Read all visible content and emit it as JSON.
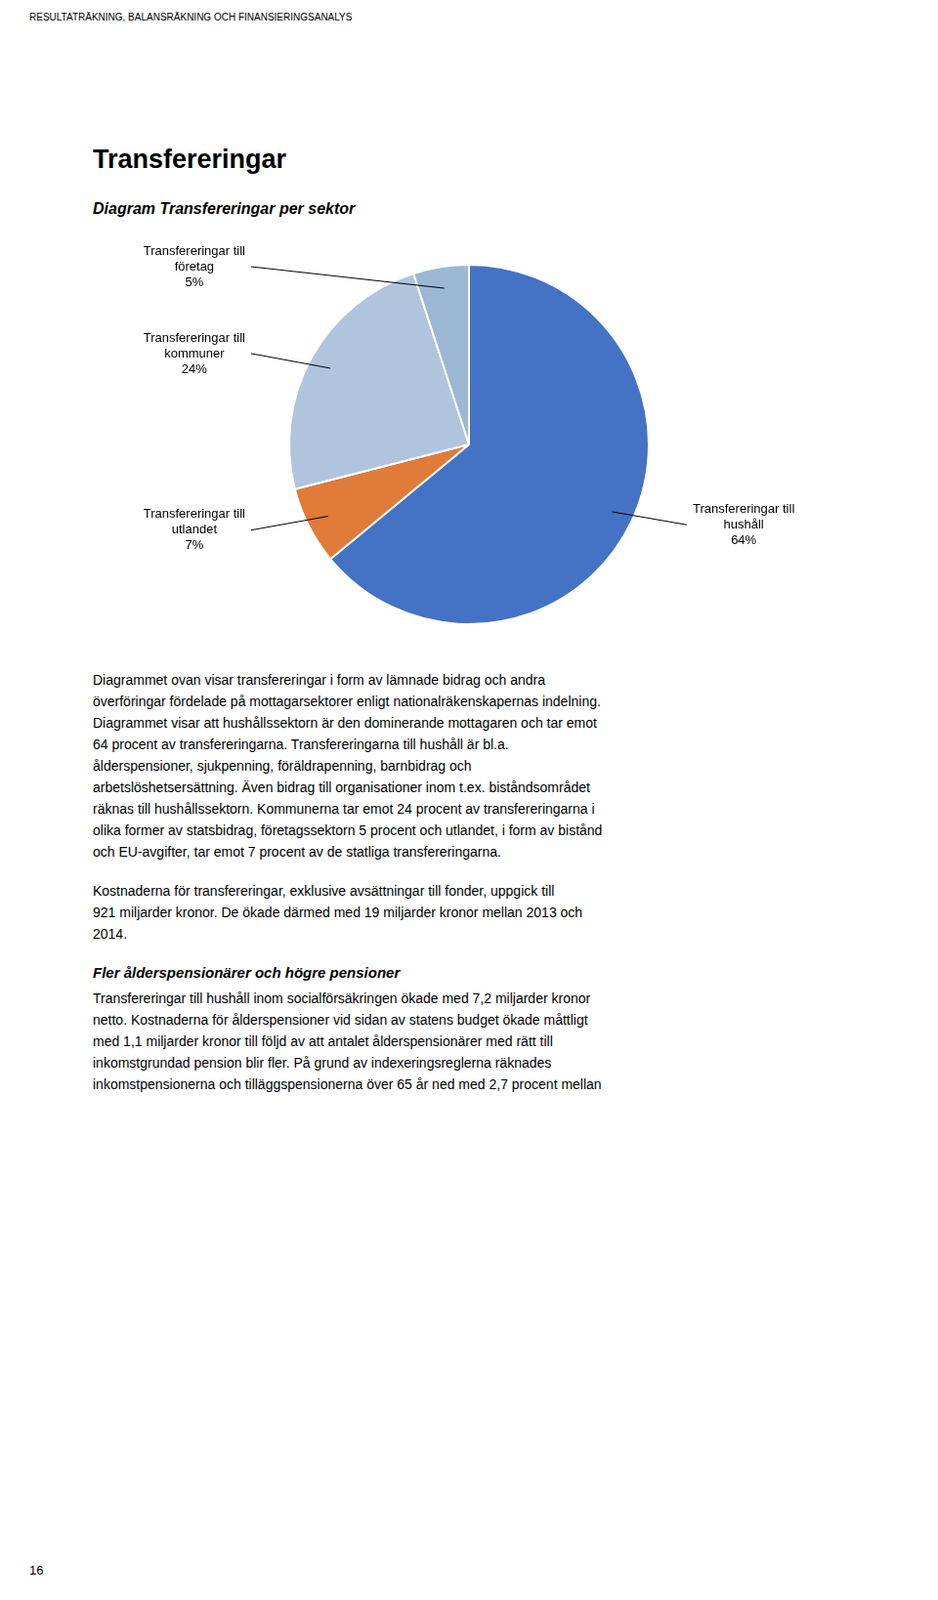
{
  "chart_data": {
    "type": "pie",
    "title": "Transfereringar",
    "subtitle": "Diagram Transfereringar per sektor",
    "categories": [
      "Transfereringar till\nhushåll",
      "Transfereringar till\nutlandet",
      "Transfereringar till\nkommuner",
      "Transfereringar till\nföretag"
    ],
    "values": [
      64,
      7,
      24,
      5
    ],
    "value_labels": [
      "64%",
      "7%",
      "24%",
      "5%"
    ],
    "data_labels": true,
    "colors": [
      "#4472C4",
      "#E07B39",
      "#B0C4DE",
      "#9BB7D4"
    ]
  },
  "header": "RESULTATRÄKNING, BALANSRÄKNING OCH FINANSIERINGSANALYS",
  "paragraphs": [
    [
      "Diagrammet ovan visar transfereringar i form av lämnade bidrag och andra",
      "överföringar fördelade på mottagarsektorer enligt nationalräkenskapernas indelning.",
      "Diagrammet visar att hushållssektorn är den dominerande mottagaren och tar emot",
      "64 procent av transfereringarna. Transfereringarna till hushåll är bl.a.",
      "ålderspensioner, sjukpenning, föräldrapenning, barnbidrag och",
      "arbetslöshetsersättning. Även bidrag till organisationer inom t.ex. biståndsområdet",
      "räknas till hushållssektorn. Kommunerna tar emot 24 procent av transfereringarna i",
      "olika former av statsbidrag, företagssektorn 5 procent och utlandet, i form av bistånd",
      "och EU-avgifter, tar emot 7 procent av de statliga transfereringarna."
    ],
    [
      "Kostnaderna för transfereringar, exklusive avsättningar till fonder, uppgick till",
      "921 miljarder kronor. De ökade därmed med 19 miljarder kronor mellan 2013 och",
      "2014."
    ]
  ],
  "section_title": "Fler ålderspensionärer och högre pensioner",
  "section_paragraphs": [
    [
      "Transfereringar till hushåll inom socialförsäkringen ökade med 7,2 miljarder kronor",
      "netto. Kostnaderna för ålderspensioner vid sidan av statens budget ökade måttligt",
      "med 1,1 miljarder kronor till följd av att antalet ålderspensionärer med rätt till",
      "inkomstgrundad pension blir fler. På grund av indexeringsreglerna räknades",
      "inkomstpensionerna och tilläggspensionerna över 65 år ned med 2,7 procent mellan"
    ]
  ],
  "page_number": "16"
}
